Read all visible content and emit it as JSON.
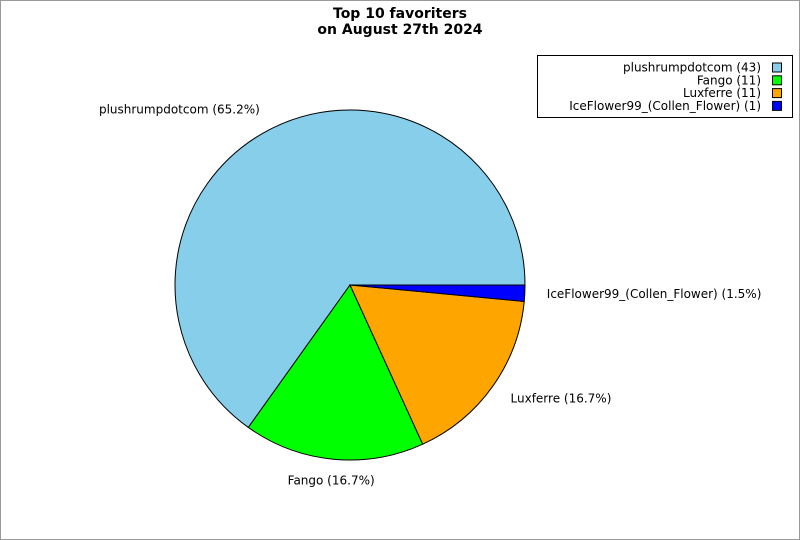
{
  "chart_data": {
    "type": "pie",
    "title": [
      "Top 10 favoriters",
      "on August 27th 2024"
    ],
    "categories": [
      "plushrumpdotcom",
      "Fango",
      "Luxferre",
      "IceFlower99_(Collen_Flower)"
    ],
    "values": [
      65.2,
      16.7,
      16.7,
      1.5
    ],
    "value_labels": [
      "plushrumpdotcom (65.2%)",
      "Fango (16.7%)",
      "Luxferre (16.7%)",
      "IceFlower99_(Collen_Flower) (1.5%)"
    ],
    "counts": [
      43,
      11,
      11,
      1
    ],
    "legend_labels": [
      "plushrumpdotcom (43)",
      "Fango (11)",
      "Luxferre (11)",
      "IceFlower99_(Collen_Flower) (1)"
    ],
    "colors": [
      "#87ceeb",
      "#00ff00",
      "#ffa500",
      "#0000ff"
    ],
    "legend": "upper right"
  }
}
